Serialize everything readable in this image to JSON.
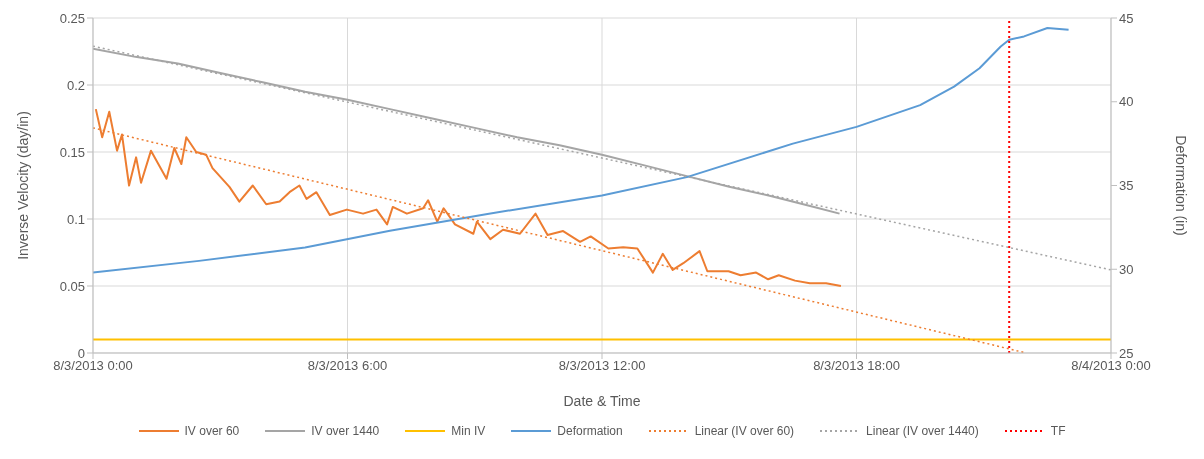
{
  "chart_data": {
    "type": "line",
    "xlabel": "Date & Time",
    "ylabel": "Inverse Velocity (day/in)",
    "y2label": "Deformation (in)",
    "xlim": [
      "2013-08-03T00:00",
      "2013-08-04T00:00"
    ],
    "xticks": [
      {
        "value": "2013-08-03T00:00",
        "label": "8/3/2013 0:00"
      },
      {
        "value": "2013-08-03T06:00",
        "label": "8/3/2013 6:00"
      },
      {
        "value": "2013-08-03T12:00",
        "label": "8/3/2013 12:00"
      },
      {
        "value": "2013-08-03T18:00",
        "label": "8/3/2013 18:00"
      },
      {
        "value": "2013-08-04T00:00",
        "label": "8/4/2013 0:00"
      }
    ],
    "ylim": [
      0,
      0.25
    ],
    "yticks": [
      0,
      0.05,
      0.1,
      0.15,
      0.2,
      0.25
    ],
    "y2lim": [
      25,
      45
    ],
    "y2ticks": [
      25,
      30,
      35,
      40,
      45
    ],
    "grid": true,
    "legend": "bottom",
    "series": [
      {
        "name": "IV over 60",
        "color": "#ed7d31",
        "x": [
          "2013-08-03T00:04",
          "2013-08-03T00:13",
          "2013-08-03T00:23",
          "2013-08-03T00:34",
          "2013-08-03T00:41",
          "2013-08-03T00:51",
          "2013-08-03T01:01",
          "2013-08-03T01:08",
          "2013-08-03T01:22",
          "2013-08-03T01:44",
          "2013-08-03T01:55",
          "2013-08-03T02:05",
          "2013-08-03T02:12",
          "2013-08-03T02:26",
          "2013-08-03T02:40",
          "2013-08-03T02:49",
          "2013-08-03T03:13",
          "2013-08-03T03:27",
          "2013-08-03T03:46",
          "2013-08-03T04:05",
          "2013-08-03T04:24",
          "2013-08-03T04:38",
          "2013-08-03T04:52",
          "2013-08-03T05:02",
          "2013-08-03T05:16",
          "2013-08-03T05:35",
          "2013-08-03T05:59",
          "2013-08-03T06:22",
          "2013-08-03T06:41",
          "2013-08-03T06:56",
          "2013-08-03T07:04",
          "2013-08-03T07:24",
          "2013-08-03T07:47",
          "2013-08-03T07:54",
          "2013-08-03T08:07",
          "2013-08-03T08:16",
          "2013-08-03T08:32",
          "2013-08-03T08:58",
          "2013-08-03T09:03",
          "2013-08-03T09:22",
          "2013-08-03T09:40",
          "2013-08-03T10:04",
          "2013-08-03T10:26",
          "2013-08-03T10:43",
          "2013-08-03T11:05",
          "2013-08-03T11:29",
          "2013-08-03T11:44",
          "2013-08-03T12:09",
          "2013-08-03T12:30",
          "2013-08-03T12:50",
          "2013-08-03T13:12",
          "2013-08-03T13:26",
          "2013-08-03T13:40",
          "2013-08-03T13:55",
          "2013-08-03T14:18",
          "2013-08-03T14:29",
          "2013-08-03T14:59",
          "2013-08-03T15:16",
          "2013-08-03T15:38",
          "2013-08-03T15:55",
          "2013-08-03T16:10",
          "2013-08-03T16:33",
          "2013-08-03T16:54",
          "2013-08-03T17:17",
          "2013-08-03T17:38"
        ],
        "values": [
          0.182,
          0.161,
          0.18,
          0.151,
          0.163,
          0.125,
          0.146,
          0.127,
          0.151,
          0.13,
          0.153,
          0.141,
          0.161,
          0.15,
          0.148,
          0.138,
          0.124,
          0.113,
          0.125,
          0.111,
          0.113,
          0.12,
          0.125,
          0.115,
          0.12,
          0.103,
          0.107,
          0.104,
          0.107,
          0.096,
          0.109,
          0.104,
          0.108,
          0.114,
          0.098,
          0.108,
          0.096,
          0.089,
          0.098,
          0.085,
          0.092,
          0.089,
          0.104,
          0.088,
          0.091,
          0.083,
          0.087,
          0.078,
          0.079,
          0.078,
          0.06,
          0.074,
          0.062,
          0.067,
          0.076,
          0.061,
          0.061,
          0.058,
          0.06,
          0.055,
          0.058,
          0.054,
          0.052,
          0.052,
          0.05
        ]
      },
      {
        "name": "IV over 1440",
        "color": "#a5a5a5",
        "x": [
          "2013-08-03T00:00",
          "2013-08-03T01:00",
          "2013-08-03T02:00",
          "2013-08-03T03:00",
          "2013-08-03T04:00",
          "2013-08-03T05:00",
          "2013-08-03T06:00",
          "2013-08-03T07:00",
          "2013-08-03T08:00",
          "2013-08-03T09:00",
          "2013-08-03T10:00",
          "2013-08-03T11:00",
          "2013-08-03T12:00",
          "2013-08-03T13:00",
          "2013-08-03T14:00",
          "2013-08-03T15:00",
          "2013-08-03T16:00",
          "2013-08-03T17:00",
          "2013-08-03T17:36"
        ],
        "values": [
          0.227,
          0.221,
          0.216,
          0.209,
          0.202,
          0.195,
          0.189,
          0.182,
          0.175,
          0.168,
          0.161,
          0.155,
          0.148,
          0.14,
          0.132,
          0.124,
          0.117,
          0.109,
          0.104
        ]
      },
      {
        "name": "Min IV",
        "color": "#ffc000",
        "x": [
          "2013-08-03T00:00",
          "2013-08-04T00:00"
        ],
        "values": [
          0.01,
          0.01
        ]
      },
      {
        "name": "Deformation",
        "color": "#5b9bd5",
        "axis": "y2",
        "x": [
          "2013-08-03T00:00",
          "2013-08-03T02:30",
          "2013-08-03T05:00",
          "2013-08-03T07:00",
          "2013-08-03T09:18",
          "2013-08-03T12:00",
          "2013-08-03T14:00",
          "2013-08-03T16:30",
          "2013-08-03T18:00",
          "2013-08-03T19:30",
          "2013-08-03T20:18",
          "2013-08-03T20:54",
          "2013-08-03T21:24",
          "2013-08-03T21:36",
          "2013-08-03T21:57",
          "2013-08-03T22:30",
          "2013-08-03T23:00"
        ],
        "values": [
          29.8,
          30.5,
          31.3,
          32.3,
          33.3,
          34.4,
          35.5,
          37.5,
          38.5,
          39.8,
          40.9,
          42,
          43.3,
          43.7,
          43.9,
          44.4,
          44.3
        ]
      },
      {
        "name": "Linear (IV over 60)",
        "color": "#ed7d31",
        "line_style": "dotted",
        "x": [
          "2013-08-03T00:00",
          "2013-08-03T22:00"
        ],
        "values": [
          0.168,
          0
        ]
      },
      {
        "name": "Linear (IV over 1440)",
        "color": "#a5a5a5",
        "line_style": "dotted",
        "x": [
          "2013-08-03T00:00",
          "2013-08-04T00:00"
        ],
        "values": [
          0.229,
          0.062
        ]
      }
    ],
    "ref_lines": [
      {
        "axis": "x",
        "value": "2013-08-03T21:36",
        "label": "TF",
        "color": "#ff0000",
        "line_style": "dotted"
      }
    ]
  }
}
